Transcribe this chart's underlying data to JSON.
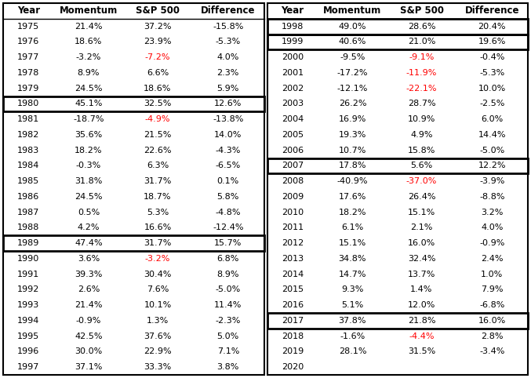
{
  "left_table": {
    "headers": [
      "Year",
      "Momentum",
      "S&P 500",
      "Difference"
    ],
    "rows": [
      [
        "1975",
        "21.4%",
        "37.2%",
        "-15.8%"
      ],
      [
        "1976",
        "18.6%",
        "23.9%",
        "-5.3%"
      ],
      [
        "1977",
        "-3.2%",
        "-7.2%",
        "4.0%"
      ],
      [
        "1978",
        "8.9%",
        "6.6%",
        "2.3%"
      ],
      [
        "1979",
        "24.5%",
        "18.6%",
        "5.9%"
      ],
      [
        "1980",
        "45.1%",
        "32.5%",
        "12.6%"
      ],
      [
        "1981",
        "-18.7%",
        "-4.9%",
        "-13.8%"
      ],
      [
        "1982",
        "35.6%",
        "21.5%",
        "14.0%"
      ],
      [
        "1983",
        "18.2%",
        "22.6%",
        "-4.3%"
      ],
      [
        "1984",
        "-0.3%",
        "6.3%",
        "-6.5%"
      ],
      [
        "1985",
        "31.8%",
        "31.7%",
        "0.1%"
      ],
      [
        "1986",
        "24.5%",
        "18.7%",
        "5.8%"
      ],
      [
        "1987",
        "0.5%",
        "5.3%",
        "-4.8%"
      ],
      [
        "1988",
        "4.2%",
        "16.6%",
        "-12.4%"
      ],
      [
        "1989",
        "47.4%",
        "31.7%",
        "15.7%"
      ],
      [
        "1990",
        "3.6%",
        "-3.2%",
        "6.8%"
      ],
      [
        "1991",
        "39.3%",
        "30.4%",
        "8.9%"
      ],
      [
        "1992",
        "2.6%",
        "7.6%",
        "-5.0%"
      ],
      [
        "1993",
        "21.4%",
        "10.1%",
        "11.4%"
      ],
      [
        "1994",
        "-0.9%",
        "1.3%",
        "-2.3%"
      ],
      [
        "1995",
        "42.5%",
        "37.6%",
        "5.0%"
      ],
      [
        "1996",
        "30.0%",
        "22.9%",
        "7.1%"
      ],
      [
        "1997",
        "37.1%",
        "33.3%",
        "3.8%"
      ]
    ],
    "sp500_red": [
      "1977",
      "1981",
      "1990"
    ],
    "boxed_rows": [
      "1980",
      "1989"
    ]
  },
  "right_table": {
    "headers": [
      "Year",
      "Momentum",
      "S&P 500",
      "Difference"
    ],
    "rows": [
      [
        "1998",
        "49.0%",
        "28.6%",
        "20.4%"
      ],
      [
        "1999",
        "40.6%",
        "21.0%",
        "19.6%"
      ],
      [
        "2000",
        "-9.5%",
        "-9.1%",
        "-0.4%"
      ],
      [
        "2001",
        "-17.2%",
        "-11.9%",
        "-5.3%"
      ],
      [
        "2002",
        "-12.1%",
        "-22.1%",
        "10.0%"
      ],
      [
        "2003",
        "26.2%",
        "28.7%",
        "-2.5%"
      ],
      [
        "2004",
        "16.9%",
        "10.9%",
        "6.0%"
      ],
      [
        "2005",
        "19.3%",
        "4.9%",
        "14.4%"
      ],
      [
        "2006",
        "10.7%",
        "15.8%",
        "-5.0%"
      ],
      [
        "2007",
        "17.8%",
        "5.6%",
        "12.2%"
      ],
      [
        "2008",
        "-40.9%",
        "-37.0%",
        "-3.9%"
      ],
      [
        "2009",
        "17.6%",
        "26.4%",
        "-8.8%"
      ],
      [
        "2010",
        "18.2%",
        "15.1%",
        "3.2%"
      ],
      [
        "2011",
        "6.1%",
        "2.1%",
        "4.0%"
      ],
      [
        "2012",
        "15.1%",
        "16.0%",
        "-0.9%"
      ],
      [
        "2013",
        "34.8%",
        "32.4%",
        "2.4%"
      ],
      [
        "2014",
        "14.7%",
        "13.7%",
        "1.0%"
      ],
      [
        "2015",
        "9.3%",
        "1.4%",
        "7.9%"
      ],
      [
        "2016",
        "5.1%",
        "12.0%",
        "-6.8%"
      ],
      [
        "2017",
        "37.8%",
        "21.8%",
        "16.0%"
      ],
      [
        "2018",
        "-1.6%",
        "-4.4%",
        "2.8%"
      ],
      [
        "2019",
        "28.1%",
        "31.5%",
        "-3.4%"
      ],
      [
        "2020",
        "",
        "",
        ""
      ]
    ],
    "sp500_red": [
      "2000",
      "2001",
      "2002",
      "2008",
      "2018"
    ],
    "boxed_rows": [
      "1998",
      "1999",
      "2007",
      "2017"
    ]
  },
  "header_color": "#000000",
  "text_color": "#000000",
  "red_color": "#FF0000",
  "background_color": "#FFFFFF",
  "font_size": 8.0,
  "header_font_size": 8.5,
  "fig_width": 6.77,
  "fig_height": 4.82,
  "dpi": 100
}
